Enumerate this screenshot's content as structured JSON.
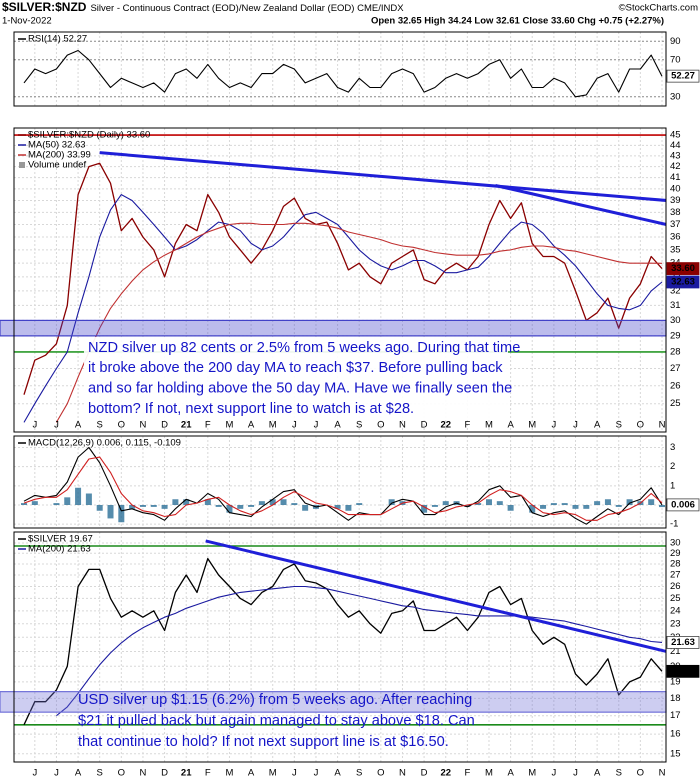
{
  "header": {
    "symbol": "$SILVER:$NZD",
    "description": "Silver - Continuous Contract (EOD)/New Zealand Dollar (EOD) CME/INDX",
    "date": "1-Nov-2022",
    "quote": "Open 32.65 High 34.24 Low 32.61 Close 33.60 Chg +0.75 (+2.27%)",
    "watermark": "©StockCharts.com"
  },
  "chart_data": [
    {
      "type": "line",
      "title": "RSI(14) 52.27",
      "ylim": [
        20,
        100
      ],
      "yticks": [
        30,
        70,
        90
      ],
      "grid": true,
      "series": [
        {
          "color": "#000000",
          "value_label": "52.27",
          "tag": "outline",
          "values": [
            45,
            60,
            55,
            60,
            75,
            80,
            70,
            55,
            40,
            50,
            45,
            40,
            45,
            35,
            55,
            60,
            50,
            65,
            50,
            40,
            45,
            40,
            55,
            55,
            65,
            60,
            45,
            50,
            55,
            40,
            35,
            50,
            40,
            40,
            55,
            60,
            55,
            35,
            40,
            50,
            55,
            50,
            55,
            65,
            70,
            50,
            60,
            40,
            40,
            50,
            45,
            30,
            32,
            50,
            55,
            35,
            60,
            60,
            75,
            52.27
          ]
        }
      ]
    },
    {
      "type": "line",
      "log_scale": true,
      "ylim": [
        23.5,
        45.7
      ],
      "yticks": [
        25,
        26,
        27,
        28,
        29,
        30,
        31,
        32,
        33,
        34,
        35,
        36,
        37,
        38,
        39,
        40,
        41,
        42,
        43,
        44,
        45
      ],
      "grid": true,
      "categories": [
        null,
        "J",
        null,
        "J",
        null,
        "A",
        null,
        "S",
        null,
        "O",
        null,
        "N",
        null,
        "D",
        null,
        "21",
        null,
        "F",
        null,
        "M",
        null,
        "A",
        null,
        "M",
        null,
        "J",
        null,
        "J",
        null,
        "A",
        null,
        "S",
        null,
        "O",
        null,
        "N",
        null,
        "D",
        null,
        "22",
        null,
        "F",
        null,
        "M",
        null,
        "A",
        null,
        "M",
        null,
        "J",
        null,
        "J",
        null,
        "A",
        null,
        "S",
        null,
        "O",
        null,
        "N"
      ],
      "series": [
        {
          "name": "$SILVER:$NZD (Daily) 33.60",
          "color": "#8a0000",
          "value_label": "33.60",
          "tag": "filled",
          "values": [
            25.5,
            27.5,
            27.8,
            28.5,
            31,
            39.5,
            42,
            42.3,
            40.5,
            36.5,
            37.5,
            36,
            35,
            33,
            35.5,
            37,
            36.5,
            39.5,
            38,
            36,
            35,
            34,
            35,
            36.5,
            38.5,
            39.2,
            37.5,
            37,
            37.2,
            35.5,
            33.5,
            34,
            33,
            32.5,
            34,
            34.5,
            35,
            32.8,
            32.5,
            33.5,
            34,
            33.5,
            34.5,
            37,
            39,
            37.5,
            38.8,
            35.5,
            34.5,
            34.5,
            34,
            32,
            30,
            30.5,
            31.5,
            29.5,
            31.5,
            32.5,
            34.5,
            33.6
          ]
        },
        {
          "name": "MA(50) 32.63",
          "color": "#1a1aa0",
          "value_label": "32.63",
          "tag": "filled",
          "values": [
            24,
            25,
            26,
            27,
            28,
            30.5,
            33,
            36,
            38.2,
            39.5,
            39,
            38,
            37,
            36,
            35,
            35.3,
            35.8,
            36.5,
            37.2,
            37,
            36.5,
            35.5,
            35,
            35.3,
            36,
            37,
            37.8,
            38,
            37.5,
            37,
            36,
            35,
            34.3,
            33.8,
            33.5,
            33.8,
            34.2,
            34.2,
            33.8,
            33.3,
            33.3,
            33.5,
            33.7,
            34.5,
            35.5,
            36.5,
            37.2,
            37,
            36.3,
            35.3,
            34.6,
            33.8,
            32.8,
            31.8,
            31,
            30.8,
            30.7,
            31,
            32,
            32.63
          ]
        },
        {
          "name": "MA(200) 33.99",
          "color": "#c03030",
          "values": [
            null,
            null,
            null,
            24,
            25,
            26.5,
            28,
            29.5,
            30.8,
            31.8,
            32.7,
            33.5,
            34.1,
            34.6,
            35,
            35.5,
            36,
            36.4,
            36.7,
            37,
            37.1,
            37.1,
            37,
            37,
            37,
            37.1,
            37.1,
            37,
            36.9,
            36.7,
            36.4,
            36.2,
            36,
            35.8,
            35.5,
            35.3,
            35.2,
            35,
            34.8,
            34.7,
            34.6,
            34.6,
            34.6,
            34.7,
            34.9,
            35,
            35.2,
            35.3,
            35.3,
            35.2,
            35,
            34.9,
            34.7,
            34.5,
            34.3,
            34.1,
            34,
            34,
            34,
            33.99
          ]
        }
      ],
      "legend_note": "Volume undef",
      "hlines": [
        {
          "value": 45,
          "color": "#c00000"
        },
        {
          "value": 28,
          "color": "#2a9a2a"
        }
      ],
      "bands": [
        {
          "range": [
            29,
            30
          ],
          "color": "#4040c8"
        }
      ],
      "trendlines": [
        {
          "x": [
            7,
            59.4
          ],
          "values": [
            43.3,
            39.0
          ],
          "color": "#1f1fd8"
        },
        {
          "x": [
            43.6,
            59.4
          ],
          "values": [
            40.3,
            37.0
          ],
          "color": "#1f1fd8"
        }
      ],
      "annotation": [
        "NZD silver up 82 cents or 2.5% from 5 weeks ago. During that time",
        "it broke above the 200 day MA to reach $37. Before pulling back",
        "and so far holding above the 50 day MA. Have we finally seen the",
        "bottom? If not, next support line to watch is at $28."
      ]
    },
    {
      "type": "line",
      "title": "MACD(12,26,9) 0.006, 0.115, -0.109",
      "ylim": [
        -1.2,
        3.6
      ],
      "yticks": [
        -1,
        0,
        1,
        2,
        3
      ],
      "grid": true,
      "series": [
        {
          "color": "#2a6f97",
          "style": "histogram",
          "values": [
            0.1,
            0.2,
            0,
            0.1,
            0.4,
            0.9,
            0.6,
            -0.3,
            -0.7,
            -0.9,
            -0.2,
            -0.1,
            -0.1,
            -0.2,
            0.3,
            0.3,
            0,
            0.3,
            -0.1,
            -0.4,
            -0.2,
            -0.1,
            0.2,
            0.3,
            0.3,
            0.1,
            -0.3,
            -0.2,
            0,
            -0.2,
            -0.3,
            0.1,
            0,
            0,
            0.3,
            0.2,
            0,
            -0.4,
            -0.1,
            0.2,
            0.2,
            -0.1,
            0.1,
            0.3,
            0.2,
            -0.3,
            0,
            -0.4,
            -0.2,
            0.1,
            0.1,
            -0.2,
            -0.2,
            0.2,
            0.3,
            -0.1,
            0.3,
            0.2,
            0.3,
            -0.109
          ]
        },
        {
          "color": "#000000",
          "value_label": "0.006",
          "tag": "outline",
          "values": [
            0.2,
            0.5,
            0.4,
            0.5,
            1.2,
            2.5,
            3.0,
            2.2,
            1.0,
            -0.3,
            -0.2,
            -0.4,
            -0.5,
            -0.8,
            -0.2,
            0.3,
            0.1,
            0.6,
            0.3,
            -0.4,
            -0.5,
            -0.6,
            -0.1,
            0.3,
            0.7,
            0.8,
            0.1,
            -0.1,
            0.0,
            -0.4,
            -0.8,
            -0.4,
            -0.5,
            -0.5,
            0.1,
            0.3,
            0.2,
            -0.5,
            -0.5,
            -0.1,
            0.1,
            -0.1,
            0.2,
            0.8,
            1.0,
            0.4,
            0.5,
            -0.4,
            -0.6,
            -0.4,
            -0.3,
            -0.7,
            -1.0,
            -0.6,
            -0.2,
            -0.5,
            0.1,
            0.3,
            0.9,
            0.006
          ]
        },
        {
          "color": "#d02020",
          "values": [
            0.1,
            0.3,
            0.4,
            0.4,
            0.8,
            1.6,
            2.4,
            2.5,
            1.7,
            0.6,
            0.0,
            -0.3,
            -0.4,
            -0.6,
            -0.5,
            0.0,
            0.1,
            0.3,
            0.4,
            0.0,
            -0.3,
            -0.5,
            -0.3,
            0.0,
            0.4,
            0.7,
            0.4,
            0.1,
            0.0,
            -0.2,
            -0.5,
            -0.5,
            -0.5,
            -0.5,
            -0.2,
            0.1,
            0.2,
            -0.1,
            -0.4,
            -0.3,
            -0.1,
            0.0,
            0.1,
            0.5,
            0.8,
            0.7,
            0.5,
            0.0,
            -0.4,
            -0.5,
            -0.4,
            -0.5,
            -0.8,
            -0.8,
            -0.5,
            -0.4,
            -0.2,
            0.1,
            0.6,
            0.115
          ]
        }
      ]
    },
    {
      "type": "line",
      "log_scale": true,
      "ylim": [
        14.6,
        31.1
      ],
      "yticks": [
        15,
        16,
        17,
        18,
        19,
        20,
        21,
        22,
        23,
        24,
        25,
        26,
        27,
        28,
        29,
        30
      ],
      "grid": true,
      "categories": [
        null,
        "J",
        null,
        "J",
        null,
        "A",
        null,
        "S",
        null,
        "O",
        null,
        "N",
        null,
        "D",
        null,
        "21",
        null,
        "F",
        null,
        "M",
        null,
        "A",
        null,
        "M",
        null,
        "J",
        null,
        "J",
        null,
        "A",
        null,
        "S",
        null,
        "O",
        null,
        "N",
        null,
        "D",
        null,
        "22",
        null,
        "F",
        null,
        "M",
        null,
        "A",
        null,
        "M",
        null,
        "J",
        null,
        "J",
        null,
        "A",
        null,
        "S",
        null,
        "O",
        null,
        "N"
      ],
      "series": [
        {
          "name": "$SILVER 19.67",
          "color": "#000000",
          "value_label": "19.67",
          "tag": "filled",
          "values": [
            16.5,
            17.8,
            17.8,
            18.5,
            20,
            26,
            27.5,
            27.5,
            25,
            23.5,
            24,
            23.5,
            24,
            22.5,
            25.5,
            27,
            25.5,
            28.5,
            27,
            26,
            25,
            24.5,
            25.5,
            26,
            27.5,
            28,
            26.5,
            26.3,
            25.8,
            24.5,
            23.5,
            24,
            23,
            22.3,
            23.8,
            24,
            24.8,
            22.5,
            22.5,
            23,
            23.5,
            22.5,
            23.5,
            25.5,
            26,
            24.5,
            25,
            22.5,
            21.5,
            22,
            21.5,
            19.5,
            18.8,
            19.5,
            20.5,
            18.2,
            19,
            19.3,
            20.5,
            19.67
          ]
        },
        {
          "name": "MA(200) 21.63",
          "color": "#1a1aa0",
          "value_label": "21.63",
          "tag": "outline",
          "values": [
            null,
            null,
            null,
            17,
            17.5,
            18.3,
            19.2,
            20.1,
            20.9,
            21.6,
            22.2,
            22.7,
            23.1,
            23.5,
            23.8,
            24.2,
            24.5,
            24.8,
            25.1,
            25.3,
            25.5,
            25.6,
            25.7,
            25.8,
            25.9,
            26,
            26,
            25.9,
            25.8,
            25.6,
            25.4,
            25.2,
            25,
            24.8,
            24.6,
            24.4,
            24.3,
            24.1,
            24,
            23.9,
            23.8,
            23.7,
            23.6,
            23.6,
            23.6,
            23.6,
            23.6,
            23.5,
            23.4,
            23.3,
            23.2,
            23,
            22.8,
            22.6,
            22.4,
            22.2,
            22,
            21.9,
            21.7,
            21.63
          ]
        }
      ],
      "hlines": [
        {
          "value": 29.7,
          "color": "#1a8a1a"
        },
        {
          "value": 16.5,
          "color": "#1a8a1a"
        }
      ],
      "bands": [
        {
          "range": [
            17.2,
            18.4
          ],
          "color": "#7070d8"
        }
      ],
      "trendlines": [
        {
          "x": [
            16.8,
            59.4
          ],
          "values": [
            30.2,
            21.0
          ],
          "color": "#1f1fd8"
        }
      ],
      "annotation": [
        "USD silver up $1.15 (6.2%) from 5 weeks ago. After reaching",
        "$21 it pulled back but again managed to stay above $18. Can",
        "that continue to hold? If not next support line is at $16.50."
      ]
    }
  ]
}
